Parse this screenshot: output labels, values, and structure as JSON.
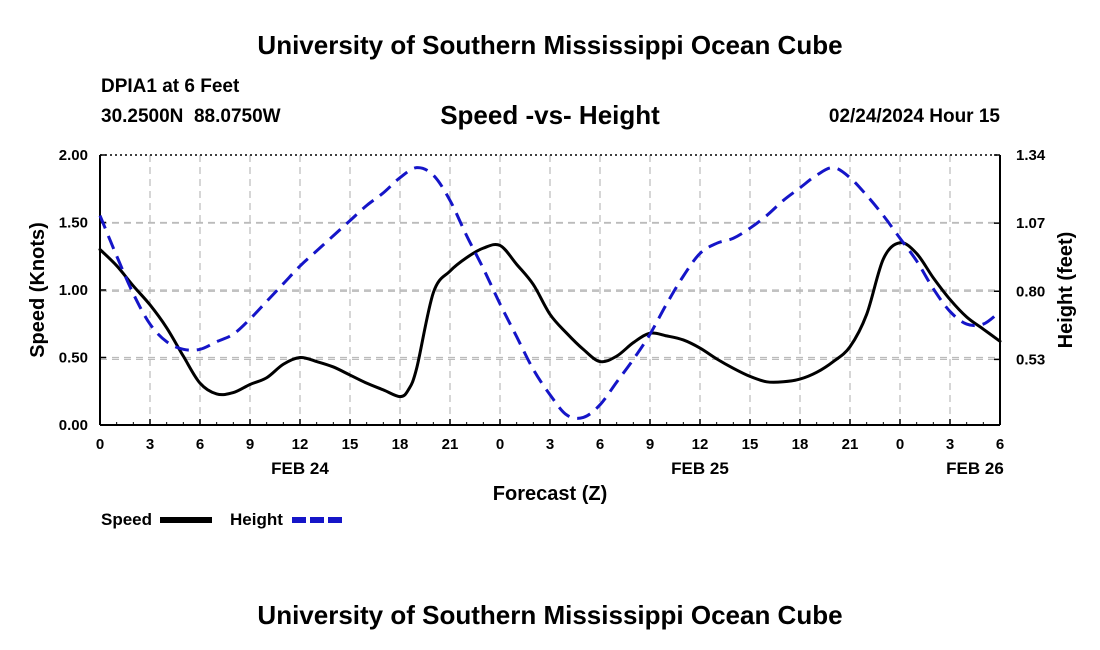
{
  "header": {
    "title": "University of Southern Mississippi Ocean Cube",
    "station": "DPIA1 at 6 Feet",
    "coords": "30.2500N  88.0750W",
    "subtitle": "Speed -vs- Height",
    "datetime": "02/24/2024 Hour 15"
  },
  "footer": {
    "title": "University of Southern Mississippi Ocean Cube"
  },
  "chart_data": {
    "type": "line",
    "title": "Speed -vs- Height",
    "xlabel": "Forecast (Z)",
    "ylabel_left": "Speed (Knots)",
    "ylabel_right": "Height (feet)",
    "x_unit": "hours from 2024-02-24 00Z",
    "xlim": [
      0,
      54
    ],
    "ylim_left": [
      0.0,
      2.0
    ],
    "ylim_right": [
      0.27,
      1.34
    ],
    "grid": true,
    "x_ticks": [
      {
        "x": 0,
        "label": "0"
      },
      {
        "x": 3,
        "label": "3"
      },
      {
        "x": 6,
        "label": "6"
      },
      {
        "x": 9,
        "label": "9"
      },
      {
        "x": 12,
        "label": "12"
      },
      {
        "x": 15,
        "label": "15"
      },
      {
        "x": 18,
        "label": "18"
      },
      {
        "x": 21,
        "label": "21"
      },
      {
        "x": 24,
        "label": "0"
      },
      {
        "x": 27,
        "label": "3"
      },
      {
        "x": 30,
        "label": "6"
      },
      {
        "x": 33,
        "label": "9"
      },
      {
        "x": 36,
        "label": "12"
      },
      {
        "x": 39,
        "label": "15"
      },
      {
        "x": 42,
        "label": "18"
      },
      {
        "x": 45,
        "label": "21"
      },
      {
        "x": 48,
        "label": "0"
      },
      {
        "x": 51,
        "label": "3"
      },
      {
        "x": 54,
        "label": "6"
      }
    ],
    "day_labels": [
      {
        "x": 12,
        "label": "FEB 24"
      },
      {
        "x": 36,
        "label": "FEB 25"
      },
      {
        "x": 52.5,
        "label": "FEB 26"
      }
    ],
    "y_left_ticks": [
      {
        "y": 0.0,
        "label": "0.00"
      },
      {
        "y": 0.5,
        "label": "0.50"
      },
      {
        "y": 1.0,
        "label": "1.00"
      },
      {
        "y": 1.5,
        "label": "1.50"
      },
      {
        "y": 2.0,
        "label": "2.00"
      }
    ],
    "y_right_ticks": [
      {
        "y": 0.53,
        "label": "0.53"
      },
      {
        "y": 0.8,
        "label": "0.80"
      },
      {
        "y": 1.07,
        "label": "1.07"
      },
      {
        "y": 1.34,
        "label": "1.34"
      }
    ],
    "series": [
      {
        "name": "Speed",
        "axis": "left",
        "color": "#000000",
        "dash": false,
        "x": [
          0,
          1,
          2,
          3,
          4,
          5,
          6,
          7,
          8,
          9,
          10,
          11,
          12,
          13,
          14,
          15,
          16,
          17,
          18,
          18.5,
          19,
          20,
          21,
          22,
          23,
          24,
          25,
          26,
          27,
          28,
          29,
          30,
          31,
          32,
          33,
          34,
          35,
          36,
          37,
          38,
          39,
          40,
          41,
          42,
          43,
          44,
          45,
          46,
          47,
          48,
          49,
          50,
          51,
          52,
          53,
          54
        ],
        "y": [
          1.3,
          1.18,
          1.03,
          0.89,
          0.72,
          0.51,
          0.31,
          0.23,
          0.24,
          0.3,
          0.35,
          0.45,
          0.5,
          0.47,
          0.43,
          0.37,
          0.31,
          0.26,
          0.21,
          0.26,
          0.42,
          0.98,
          1.14,
          1.24,
          1.31,
          1.33,
          1.19,
          1.04,
          0.82,
          0.68,
          0.56,
          0.47,
          0.51,
          0.61,
          0.68,
          0.66,
          0.63,
          0.57,
          0.49,
          0.42,
          0.36,
          0.32,
          0.32,
          0.34,
          0.39,
          0.47,
          0.58,
          0.82,
          1.23,
          1.35,
          1.27,
          1.09,
          0.93,
          0.8,
          0.71,
          0.62
        ]
      },
      {
        "name": "Height",
        "axis": "right",
        "color": "#1515c8",
        "dash": true,
        "x": [
          0,
          1,
          2,
          3,
          4,
          5,
          6,
          7,
          8,
          9,
          10,
          11,
          12,
          13,
          14,
          15,
          16,
          17,
          18,
          19,
          20,
          21,
          22,
          23,
          24,
          25,
          26,
          27,
          28,
          29,
          30,
          31,
          32,
          33,
          34,
          35,
          36,
          37,
          38,
          39,
          40,
          41,
          42,
          43,
          44,
          45,
          46,
          47,
          48,
          49,
          50,
          51,
          52,
          53,
          54
        ],
        "y": [
          1.1,
          0.94,
          0.79,
          0.67,
          0.6,
          0.57,
          0.57,
          0.6,
          0.63,
          0.69,
          0.76,
          0.83,
          0.9,
          0.96,
          1.02,
          1.08,
          1.14,
          1.19,
          1.25,
          1.29,
          1.26,
          1.16,
          1.02,
          0.89,
          0.75,
          0.62,
          0.49,
          0.39,
          0.31,
          0.3,
          0.35,
          0.44,
          0.53,
          0.63,
          0.75,
          0.86,
          0.95,
          0.99,
          1.01,
          1.05,
          1.1,
          1.16,
          1.21,
          1.26,
          1.29,
          1.25,
          1.18,
          1.1,
          1.01,
          0.92,
          0.81,
          0.72,
          0.67,
          0.67,
          0.72
        ]
      }
    ],
    "legend": [
      {
        "name": "Speed",
        "color": "#000000",
        "dash": false
      },
      {
        "name": "Height",
        "color": "#1515c8",
        "dash": true
      }
    ]
  }
}
